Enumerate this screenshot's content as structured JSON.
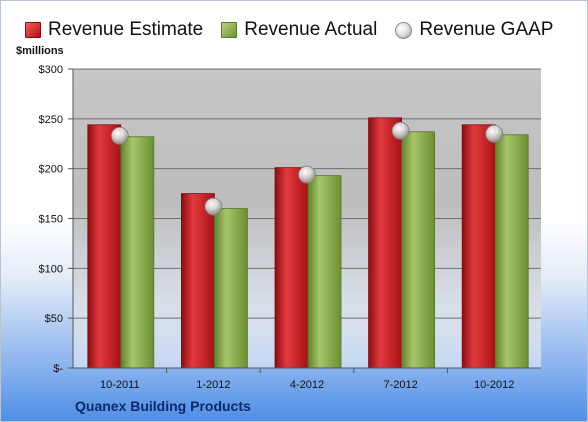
{
  "chart_data": {
    "type": "bar",
    "categories": [
      "10-2011",
      "1-2012",
      "4-2012",
      "7-2012",
      "10-2012"
    ],
    "series": [
      {
        "name": "Revenue Estimate",
        "values": [
          244,
          175,
          201,
          251,
          244
        ],
        "color": "#c01a1e"
      },
      {
        "name": "Revenue Actual",
        "values": [
          232,
          160,
          193,
          237,
          234
        ],
        "color": "#7fa33e"
      }
    ],
    "markers": {
      "name": "Revenue GAAP",
      "values": [
        233,
        162,
        194,
        238,
        235
      ],
      "color": "#c8c8c8"
    },
    "ylabel": "$millions",
    "ylim": [
      0,
      300
    ],
    "yticks": [
      0,
      50,
      100,
      150,
      200,
      250,
      300
    ],
    "ytick_labels": [
      "$-",
      "$50",
      "$100",
      "$150",
      "$200",
      "$250",
      "$300"
    ],
    "grid": true,
    "legend_position": "top",
    "plot_background": "#c0c0c0"
  },
  "footer": {
    "company": "Quanex Building Products"
  }
}
